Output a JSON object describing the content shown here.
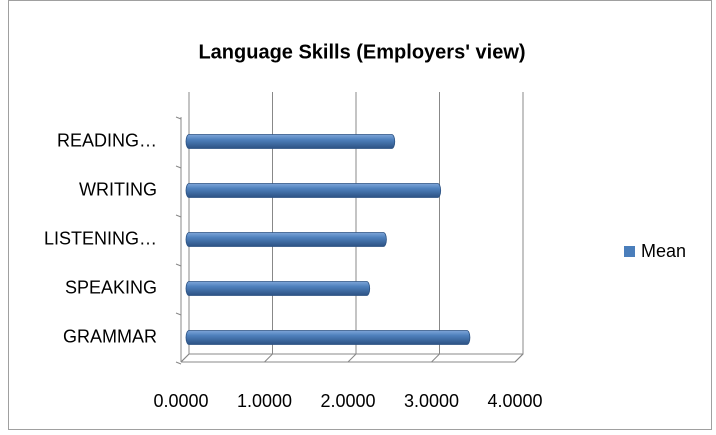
{
  "chart_data": {
    "type": "bar",
    "orientation": "horizontal",
    "title": "Language Skills (Employers' view)",
    "categories": [
      "GRAMMAR",
      "SPEAKING",
      "LISTENING…",
      "WRITING",
      "READING…"
    ],
    "series": [
      {
        "name": "Mean",
        "color": "#4a7ebb",
        "values": [
          3.4,
          2.2,
          2.4,
          3.05,
          2.5
        ]
      }
    ],
    "xlim": [
      0,
      4
    ],
    "xticks": [
      {
        "value": 0,
        "label": "0.0000"
      },
      {
        "value": 1,
        "label": "1.0000"
      },
      {
        "value": 2,
        "label": "2.0000"
      },
      {
        "value": 3,
        "label": "3.0000"
      },
      {
        "value": 4,
        "label": "4.0000"
      }
    ],
    "grid": true,
    "legend": "right"
  }
}
